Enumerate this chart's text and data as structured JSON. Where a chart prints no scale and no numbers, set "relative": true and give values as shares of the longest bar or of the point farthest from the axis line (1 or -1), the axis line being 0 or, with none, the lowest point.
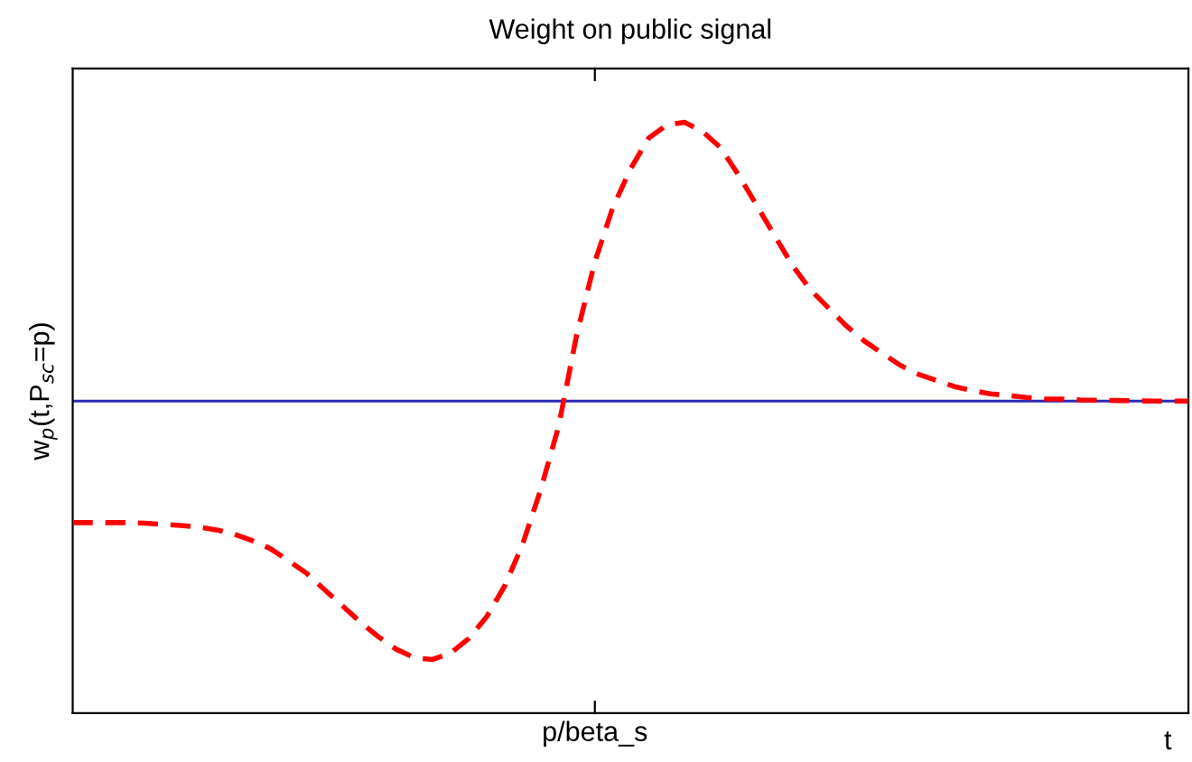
{
  "chart_data": {
    "type": "line",
    "title": "Weight on public signal",
    "xlabel": "t",
    "ylabel": "w$_{p}$(t,P$_{sc}$=p)",
    "relative": true,
    "line_style": "dashed",
    "categories": [
      null,
      null,
      null,
      null,
      null,
      null,
      null,
      null,
      null,
      null,
      null,
      null,
      null,
      null,
      null,
      null,
      null,
      null,
      null,
      null,
      null,
      null,
      null,
      null,
      null,
      null,
      null,
      null,
      null,
      null,
      null,
      null,
      null,
      null,
      null,
      null,
      null,
      null,
      null,
      null,
      null,
      null,
      null,
      null,
      null,
      null,
      null,
      null,
      null,
      null,
      null,
      null,
      null,
      null,
      null,
      null,
      null,
      null,
      null,
      null,
      null,
      null,
      null
    ],
    "annotations": [
      "p/beta_s"
    ],
    "series": [
      {
        "color": "#ff0000",
        "values": [
          -0.436,
          -0.436,
          -0.436,
          -0.436,
          -0.438,
          -0.442,
          -0.446,
          -0.452,
          -0.462,
          -0.478,
          -0.501,
          -0.53,
          -0.573,
          -0.618,
          -0.677,
          -0.735,
          -0.794,
          -0.846,
          -0.891,
          -0.921,
          -0.927,
          -0.904,
          -0.852,
          -0.774,
          -0.664,
          -0.514,
          -0.319,
          -0.091,
          0.236,
          0.496,
          0.692,
          0.833,
          0.943,
          0.99,
          1.0,
          0.967,
          0.909,
          0.811,
          0.703,
          0.594,
          0.486,
          0.399,
          0.334,
          0.269,
          0.215,
          0.171,
          0.128,
          0.096,
          0.074,
          0.052,
          0.037,
          0.026,
          0.02,
          0.013,
          0.008,
          0.007,
          0.004,
          0.003,
          0.002,
          0.001,
          0,
          0,
          0
        ]
      }
    ],
    "ref_lines": [
      {
        "axis": "y",
        "value": 0,
        "color": "#2a2ab8",
        "line_style": "solid"
      }
    ]
  }
}
